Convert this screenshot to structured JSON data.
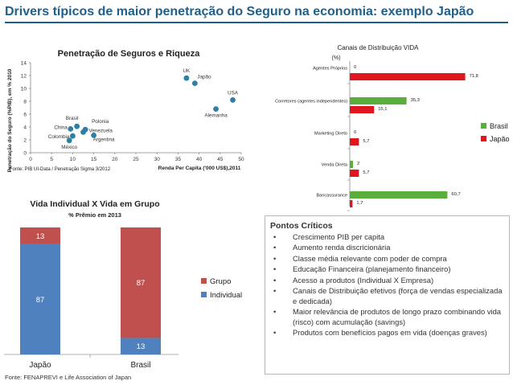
{
  "page": {
    "title": "Drivers típicos de maior penetração do Seguro na economia: exemplo Japão",
    "source": "Fonte: FENAPREVI e Life Association of Japan"
  },
  "colors": {
    "title": "#1f5f8b",
    "green": "#5aae3c",
    "red": "#e0161f",
    "blue": "#4e81bd",
    "darkred": "#c0504d",
    "point": "#2e7fa4"
  },
  "charts": {
    "scatter": {
      "title": "Penetração de Seguros e Riqueza",
      "ylabel": "Penetração do Seguro (%PIB), em % 2010",
      "xlabel": "Renda Per Capita ('000 US$),2011",
      "source": "Fonte: PIB UI-Data / Penetração Sigma 3/2012"
    },
    "canais": {
      "title": "Canais de Distribuição VIDA",
      "unit": "(%)"
    },
    "vida": {
      "title": "Vida Individual  X  Vida em Grupo",
      "subtitle": "% Prêmio em 2013"
    }
  },
  "chart_data": [
    {
      "type": "scatter",
      "title": "Penetração de Seguros e Riqueza",
      "xlabel": "Renda Per Capita ('000 US$),2011",
      "ylabel": "Penetração do Seguro (%PIB), em % 2010",
      "xlim": [
        0,
        50
      ],
      "ylim": [
        0,
        14
      ],
      "xticks": [
        0,
        5,
        10,
        15,
        20,
        25,
        30,
        35,
        40,
        45,
        50
      ],
      "yticks": [
        0,
        2,
        4,
        6,
        8,
        10,
        12,
        14
      ],
      "points": [
        {
          "label": "UK",
          "x": 37,
          "y": 11.6
        },
        {
          "label": "Japão",
          "x": 39,
          "y": 10.8
        },
        {
          "label": "USA",
          "x": 48,
          "y": 8.2
        },
        {
          "label": "Alemanha",
          "x": 44,
          "y": 6.8
        },
        {
          "label": "Brasil",
          "x": 11,
          "y": 4.1
        },
        {
          "label": "Polonia",
          "x": 13,
          "y": 3.6
        },
        {
          "label": "China",
          "x": 9.5,
          "y": 3.7
        },
        {
          "label": "Venezuela",
          "x": 12.5,
          "y": 3.2
        },
        {
          "label": "Colombia",
          "x": 10,
          "y": 2.6
        },
        {
          "label": "Argentina",
          "x": 15,
          "y": 2.7
        },
        {
          "label": "México",
          "x": 9.2,
          "y": 1.9
        }
      ]
    },
    {
      "type": "bar",
      "title": "Canais de Distribuição VIDA",
      "unit": "(%)",
      "orientation": "horizontal",
      "categories": [
        "Agentes Próprios",
        "Corretores (agentes independentes)",
        "Marketing Direto",
        "Venda Direta",
        "Bancassurance"
      ],
      "series": [
        {
          "name": "Brasil",
          "values": [
            0,
            35.3,
            0,
            2,
            60.7
          ]
        },
        {
          "name": "Japão",
          "values": [
            71.8,
            15.1,
            5.7,
            5.7,
            1.7
          ]
        }
      ],
      "value_labels": {
        "Brasil": [
          "0",
          "35,3",
          "0",
          "2",
          "60,7"
        ],
        "Japão": [
          "71,8",
          "15,1",
          "5,7",
          "5,7",
          "1,7"
        ]
      },
      "legend": "right"
    },
    {
      "type": "bar",
      "title": "Vida Individual  X  Vida em Grupo",
      "subtitle": "% Prêmio em 2013",
      "stacked": true,
      "categories": [
        "Japão",
        "Brasil"
      ],
      "series": [
        {
          "name": "Individual",
          "values": [
            87,
            13
          ]
        },
        {
          "name": "Grupo",
          "values": [
            13,
            87
          ]
        }
      ],
      "legend": "right"
    }
  ],
  "box": {
    "title": "Pontos Críticos",
    "bullet": "•",
    "items": [
      "Crescimento PIB per capita",
      "Aumento renda discricionária",
      "Classe média relevante com poder de compra",
      "Educação Financeira (planejamento financeiro)",
      "Acesso a produtos (Individual  X  Empresa)",
      "Canais de Distribuição efetivos (força de vendas especializada e dedicada)",
      "Maior relevância de produtos de longo prazo combinando vida (risco) com acumulação (savings)",
      "Produtos com benefícios pagos em vida (doenças graves)"
    ]
  }
}
